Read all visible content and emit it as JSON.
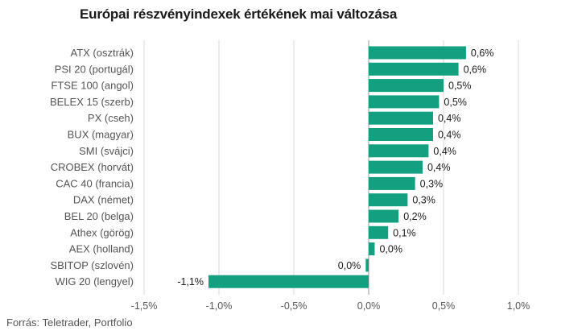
{
  "chart_data": {
    "type": "bar",
    "orientation": "horizontal",
    "title": "Európai részvényindexek értékének mai változása",
    "categories": [
      "ATX (osztrák)",
      "PSI 20 (portugál)",
      "FTSE 100 (angol)",
      "BELEX 15 (szerb)",
      "PX (cseh)",
      "BUX (magyar)",
      "SMI (svájci)",
      "CROBEX (horvát)",
      "CAC 40 (francia)",
      "DAX (német)",
      "BEL 20 (belga)",
      "Athex (görög)",
      "AEX (holland)",
      "SBITOP (szlovén)",
      "WIG 20 (lengyel)"
    ],
    "values": [
      0.65,
      0.6,
      0.5,
      0.47,
      0.43,
      0.43,
      0.4,
      0.36,
      0.31,
      0.26,
      0.2,
      0.13,
      0.04,
      -0.02,
      -1.07
    ],
    "value_labels": [
      "0,6%",
      "0,6%",
      "0,5%",
      "0,5%",
      "0,4%",
      "0,4%",
      "0,4%",
      "0,4%",
      "0,3%",
      "0,3%",
      "0,2%",
      "0,1%",
      "0,0%",
      "0,0%",
      "-1,1%"
    ],
    "xlim": [
      -1.5,
      1.0
    ],
    "x_ticks": [
      -1.5,
      -1.0,
      -0.5,
      0.0,
      0.5,
      1.0
    ],
    "x_tick_labels": [
      "-1,5%",
      "-1,0%",
      "-0,5%",
      "0,0%",
      "0,5%",
      "1,0%"
    ],
    "grid": true,
    "bar_color": "#12a080",
    "grid_color": "#d9d9d9",
    "axis_color": "#999999"
  },
  "source": "Forrás: Teletrader, Portfolio"
}
